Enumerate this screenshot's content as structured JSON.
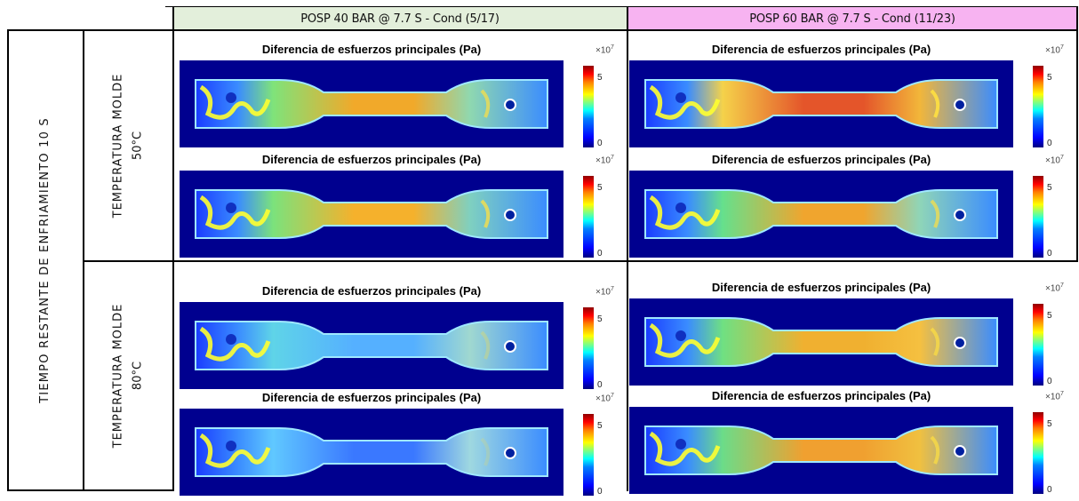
{
  "columns": [
    {
      "label": "POSP 40 BAR @ 7.7 S - Cond (5/17)",
      "color": "#e3efdb"
    },
    {
      "label": "POSP 60 BAR @ 7.7 S - Cond (11/23)",
      "color": "#f7b3f1"
    }
  ],
  "row_group": {
    "label": "TIEMPO RESTANTE DE ENFRIAMIENTO 10 S"
  },
  "rows": [
    {
      "label_line1": "TEMPERATURA MOLDE",
      "label_line2": "50°C"
    },
    {
      "label_line1": "TEMPERATURA MOLDE",
      "label_line2": "80°C"
    }
  ],
  "panel": {
    "title": "Diferencia de esfuerzos principales (Pa)",
    "colorbar_exponent_base": "×10",
    "colorbar_exponent": "7",
    "tick_top": "5",
    "tick_bottom": "0"
  },
  "colormap": "jet"
}
